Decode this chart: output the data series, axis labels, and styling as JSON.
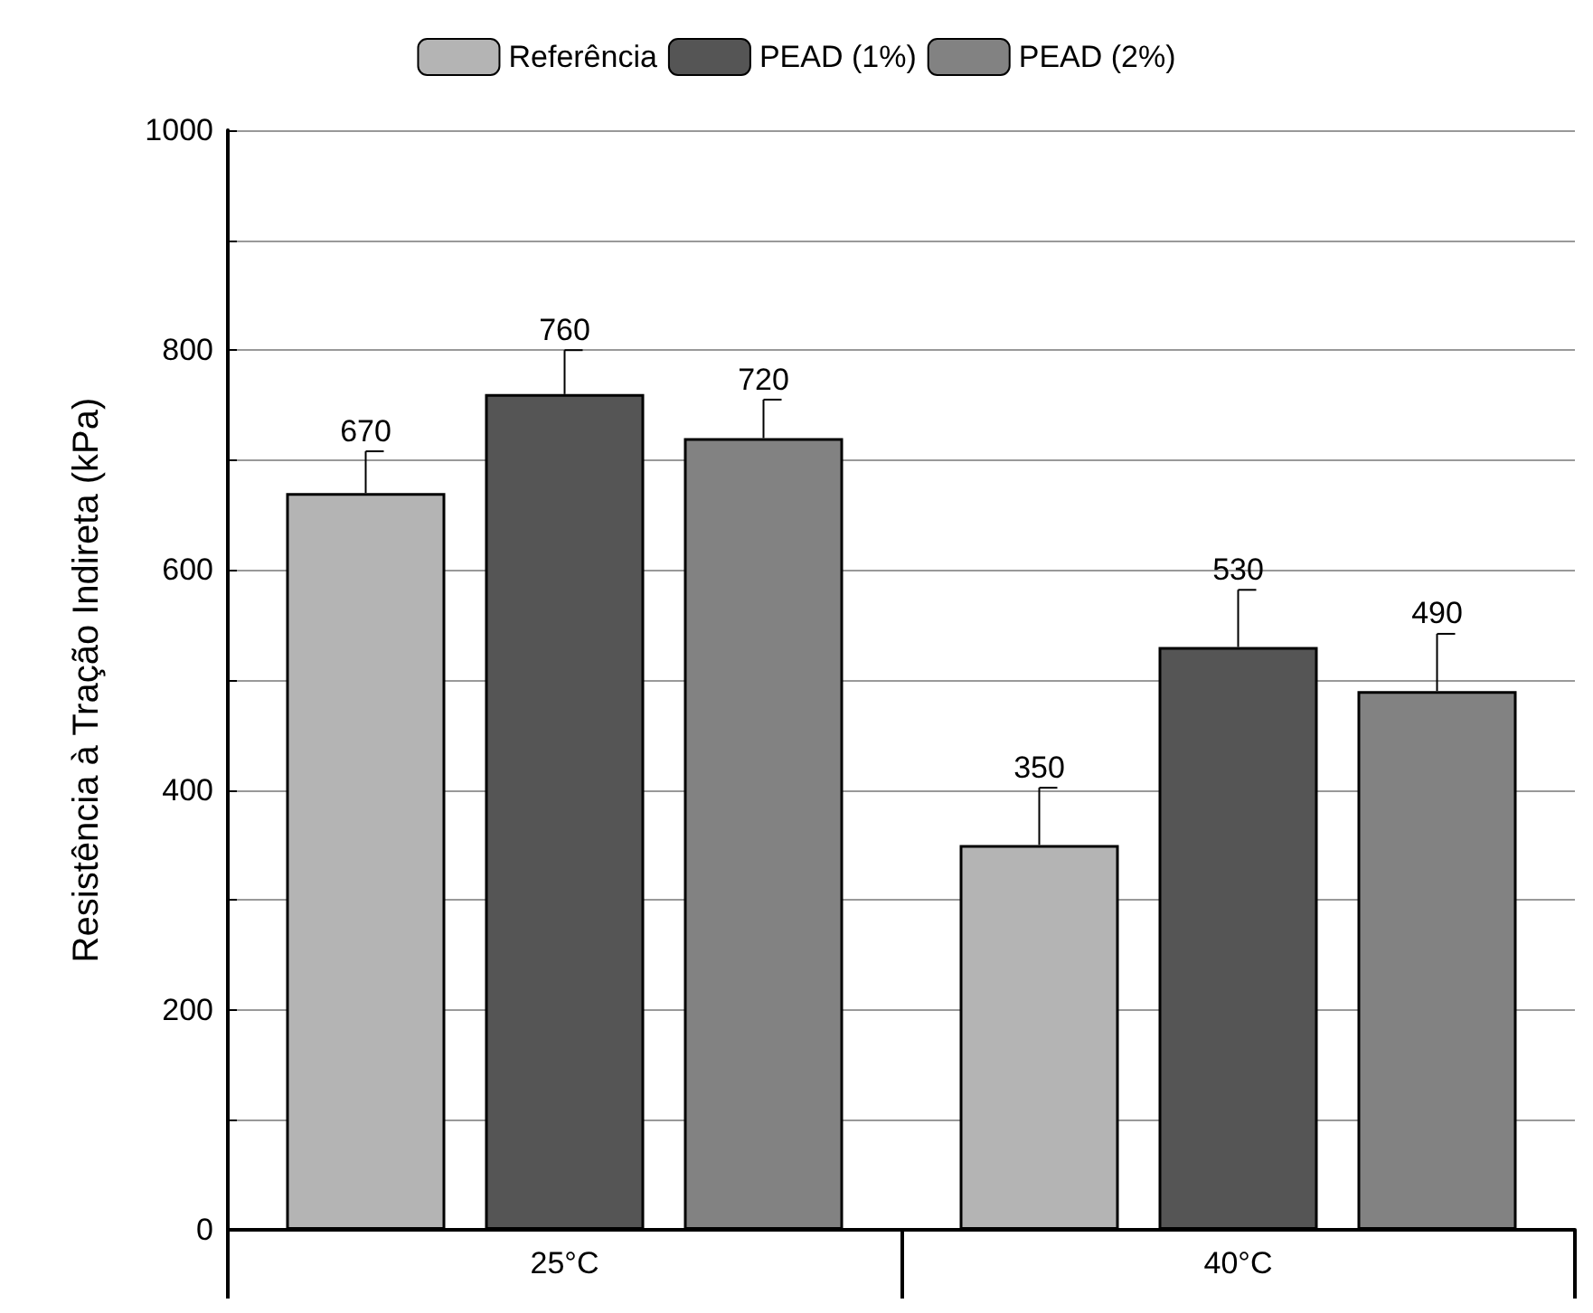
{
  "chart_data": {
    "type": "bar",
    "ylabel": "Resistência à Tração Indireta (kPa)",
    "categories": [
      "25°C",
      "40°C"
    ],
    "series": [
      {
        "name": "Referência",
        "color": "#b4b4b4",
        "values": [
          670,
          350
        ],
        "errors": [
          [
            670,
            708
          ],
          [
            350,
            402
          ]
        ]
      },
      {
        "name": "PEAD (1%)",
        "color": "#555555",
        "values": [
          760,
          530
        ],
        "errors": [
          [
            760,
            800
          ],
          [
            530,
            582
          ]
        ]
      },
      {
        "name": "PEAD (2%)",
        "color": "#828282",
        "values": [
          720,
          490
        ],
        "errors": [
          [
            720,
            755
          ],
          [
            490,
            542
          ]
        ]
      }
    ],
    "ylim": [
      0,
      1000
    ],
    "yticks": [
      0,
      {
        "value": 100,
        "label": null
      },
      200,
      {
        "value": 300,
        "label": null
      },
      400,
      {
        "value": 500,
        "label": null
      },
      600,
      {
        "value": 700,
        "label": null
      },
      800,
      {
        "value": 900,
        "label": null
      },
      1000
    ],
    "grid": "y",
    "legend": "top",
    "data_labels": true
  }
}
